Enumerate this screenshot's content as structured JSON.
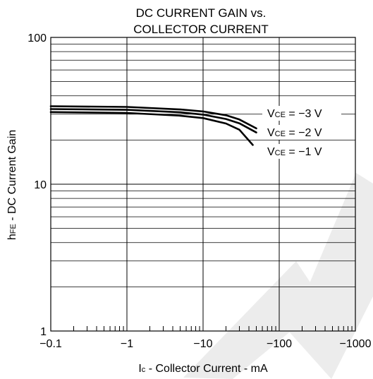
{
  "chart_data": {
    "type": "line",
    "title_line1": "DC CURRENT GAIN vs.",
    "title_line2": "COLLECTOR CURRENT",
    "xlabel": {
      "main": "I",
      "sub": "c",
      "rest": " - Collector Current - mA"
    },
    "ylabel": {
      "main": "h",
      "sub": "FE",
      "rest": " - DC Current Gain"
    },
    "x_scale": "log",
    "y_scale": "log",
    "xlim": [
      0.1,
      1000
    ],
    "ylim": [
      1,
      100
    ],
    "grid": true,
    "x_tick_labels": [
      "−0.1",
      "−1",
      "−10",
      "−100",
      "−1000"
    ],
    "y_tick_labels": [
      "1",
      "10",
      "100"
    ],
    "series": [
      {
        "name": {
          "main": "V",
          "sub": "CE",
          "rest": " = −3 V"
        },
        "x": [
          0.1,
          1,
          5,
          10,
          20,
          30,
          50
        ],
        "y": [
          34,
          33.6,
          32.3,
          31.3,
          29.5,
          27.6,
          24
        ]
      },
      {
        "name": {
          "main": "V",
          "sub": "CE",
          "rest": " = −2 V"
        },
        "x": [
          0.1,
          1,
          5,
          10,
          20,
          30,
          50
        ],
        "y": [
          32.5,
          32.1,
          30.9,
          29.8,
          27.8,
          26,
          22.5
        ]
      },
      {
        "name": {
          "main": "V",
          "sub": "CE",
          "rest": " = −1 V"
        },
        "x": [
          0.1,
          1,
          5,
          10,
          20,
          30,
          45
        ],
        "y": [
          31,
          30.6,
          29.3,
          28.2,
          25.9,
          23.5,
          18.5
        ]
      }
    ],
    "watermark": "OW",
    "colors": {
      "line": "#000000",
      "grid": "#000000",
      "watermark": "#ececec"
    }
  }
}
